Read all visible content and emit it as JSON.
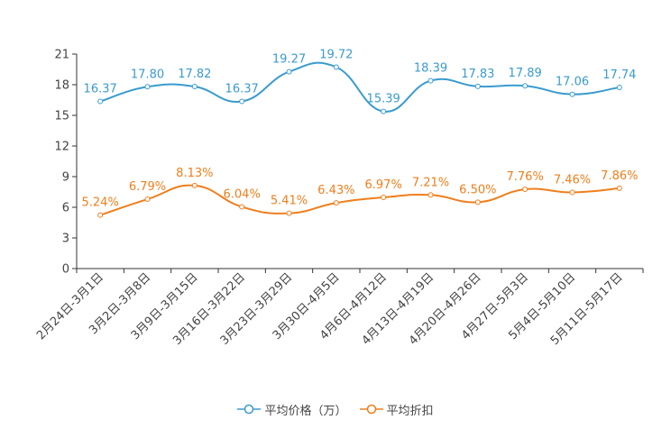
{
  "chart_data": {
    "type": "line",
    "title": "",
    "xlabel": "",
    "ylabel": "",
    "ylim": [
      0,
      21
    ],
    "yticks": [
      0,
      3,
      6,
      9,
      12,
      15,
      18,
      21
    ],
    "ytick_labels": [
      "0",
      "3",
      "6",
      "9",
      "12",
      "15",
      "18",
      "21"
    ],
    "categories": [
      "2月24日-3月1日",
      "3月2日-3月8日",
      "3月9日-3月15日",
      "3月16日-3月22日",
      "3月23日-3月29日",
      "3月30日-4月5日",
      "4月6日-4月12日",
      "4月13日-4月19日",
      "4月20日-4月26日",
      "4月27日-5月3日",
      "5月4日-5月10日",
      "5月11日-5月17日"
    ],
    "series": [
      {
        "name": "平均价格（万）",
        "color": "#3a9bcf",
        "values": [
          16.37,
          17.8,
          17.82,
          16.37,
          19.27,
          19.72,
          15.39,
          18.39,
          17.83,
          17.89,
          17.06,
          17.74
        ],
        "labels": [
          "16.37",
          "17.80",
          "17.82",
          "16.37",
          "19.27",
          "19.72",
          "15.39",
          "18.39",
          "17.83",
          "17.89",
          "17.06",
          "17.74"
        ]
      },
      {
        "name": "平均折扣",
        "color": "#f07e1c",
        "values": [
          5.24,
          6.79,
          8.13,
          6.04,
          5.41,
          6.43,
          6.97,
          7.21,
          6.5,
          7.76,
          7.46,
          7.86
        ],
        "labels": [
          "5.24%",
          "6.79%",
          "8.13%",
          "6.04%",
          "5.41%",
          "6.43%",
          "6.97%",
          "7.21%",
          "6.50%",
          "7.76%",
          "7.46%",
          "7.86%"
        ]
      }
    ],
    "legend": "bottom-center"
  }
}
